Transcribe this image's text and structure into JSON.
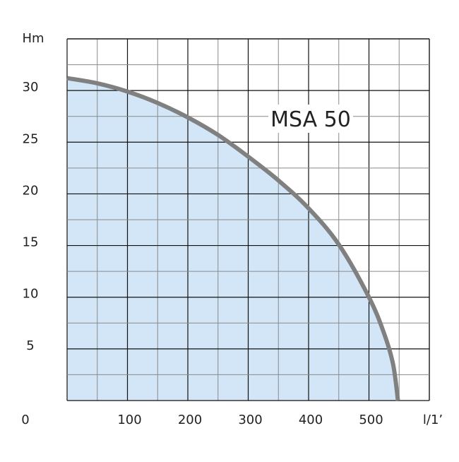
{
  "chart_data": {
    "type": "area",
    "title": "MSA 50",
    "xlabel": "l/1’",
    "ylabel": "Hm",
    "xlim": [
      0,
      600
    ],
    "ylim": [
      0,
      35
    ],
    "x_ticks": [
      0,
      100,
      200,
      300,
      400,
      500
    ],
    "x_tick_labels": [
      "0",
      "100",
      "200",
      "300",
      "400",
      "500"
    ],
    "y_ticks": [
      5,
      10,
      15,
      20,
      25,
      30
    ],
    "y_tick_labels": [
      "5",
      "10",
      "15",
      "20",
      "25",
      "30"
    ],
    "grid": true,
    "colors": {
      "fill": "#d3e6f7",
      "curve": "#808080",
      "major_grid": "#111111",
      "minor_grid": "#8a8a8a"
    },
    "series": [
      {
        "x": [
          0,
          50,
          100,
          150,
          200,
          250,
          300,
          350,
          400,
          450,
          500,
          525,
          540,
          548
        ],
        "y": [
          31.2,
          30.7,
          29.9,
          28.8,
          27.4,
          25.7,
          23.6,
          21.3,
          18.6,
          15.1,
          10.0,
          6.5,
          3.5,
          0
        ]
      }
    ]
  }
}
